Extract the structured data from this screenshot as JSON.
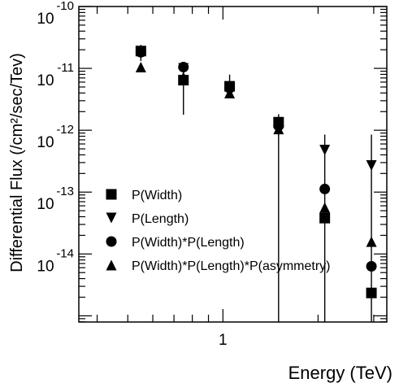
{
  "chart_data": {
    "type": "scatter",
    "xlabel": "Energy (TeV)",
    "ylabel": "Differential Flux (/cm²/sec/Tev)",
    "x_scale": "log",
    "y_scale": "log",
    "xlim": [
      0.35,
      3.3
    ],
    "ylim_log10": [
      -15.1,
      -10
    ],
    "x_tick_labels": [
      {
        "value": 1,
        "label": "1"
      }
    ],
    "y_tick_labels": [
      {
        "exp": -10,
        "base": "10",
        "sup": "-10"
      },
      {
        "exp": -11,
        "base": "10",
        "sup": "-11"
      },
      {
        "exp": -12,
        "base": "10",
        "sup": "-12"
      },
      {
        "exp": -13,
        "base": "10",
        "sup": "-13"
      },
      {
        "exp": -14,
        "base": "10",
        "sup": "-14"
      }
    ],
    "grid": false,
    "legend_position": "bottom-left",
    "series": [
      {
        "name": "P(Width)",
        "marker": "square",
        "points": [
          {
            "x": 0.55,
            "log10_y": -10.72
          },
          {
            "x": 0.75,
            "log10_y": -11.19
          },
          {
            "x": 1.05,
            "log10_y": -11.29
          },
          {
            "x": 1.5,
            "log10_y": -11.87
          },
          {
            "x": 2.1,
            "log10_y": -13.42
          },
          {
            "x": 2.95,
            "log10_y": -14.63
          }
        ]
      },
      {
        "name": "P(Length)",
        "marker": "triangle-down",
        "points": [
          {
            "x": 0.55,
            "log10_y": -10.75,
            "log10_err_lo": -10.88,
            "log10_err_hi": -10.62
          },
          {
            "x": 0.75,
            "log10_y": -11.0,
            "log10_err_lo": -11.15,
            "log10_err_hi": -10.9
          },
          {
            "x": 1.05,
            "log10_y": -11.35
          },
          {
            "x": 1.5,
            "log10_y": -12.0,
            "log10_err_lo": -15.1,
            "log10_err_hi": -11.95
          },
          {
            "x": 2.1,
            "log10_y": -12.32,
            "log10_err_lo": -15.1,
            "log10_err_hi": -12.07
          },
          {
            "x": 2.95,
            "log10_y": -12.57,
            "log10_err_lo": -15.1,
            "log10_err_hi": -12.07
          }
        ]
      },
      {
        "name": "P(Width)*P(Length)",
        "marker": "circle",
        "points": [
          {
            "x": 0.55,
            "log10_y": -10.74
          },
          {
            "x": 0.75,
            "log10_y": -10.98,
            "log10_err_lo": -11.75,
            "log10_err_hi": -10.9
          },
          {
            "x": 1.05,
            "log10_y": -11.32,
            "log10_err_lo": -11.45,
            "log10_err_hi": -11.1
          },
          {
            "x": 1.5,
            "log10_y": -11.93,
            "log10_err_lo": -12.1,
            "log10_err_hi": -11.74
          },
          {
            "x": 2.1,
            "log10_y": -12.95
          },
          {
            "x": 2.95,
            "log10_y": -14.2
          }
        ]
      },
      {
        "name": "P(Width)*P(Length)*P(asymmetry)",
        "marker": "triangle-up",
        "points": [
          {
            "x": 0.55,
            "log10_y": -10.98
          },
          {
            "x": 0.75,
            "log10_y": -11.14
          },
          {
            "x": 1.05,
            "log10_y": -11.4
          },
          {
            "x": 1.5,
            "log10_y": -11.98
          },
          {
            "x": 2.1,
            "log10_y": -13.25
          },
          {
            "x": 2.95,
            "log10_y": -13.8
          }
        ]
      }
    ]
  }
}
